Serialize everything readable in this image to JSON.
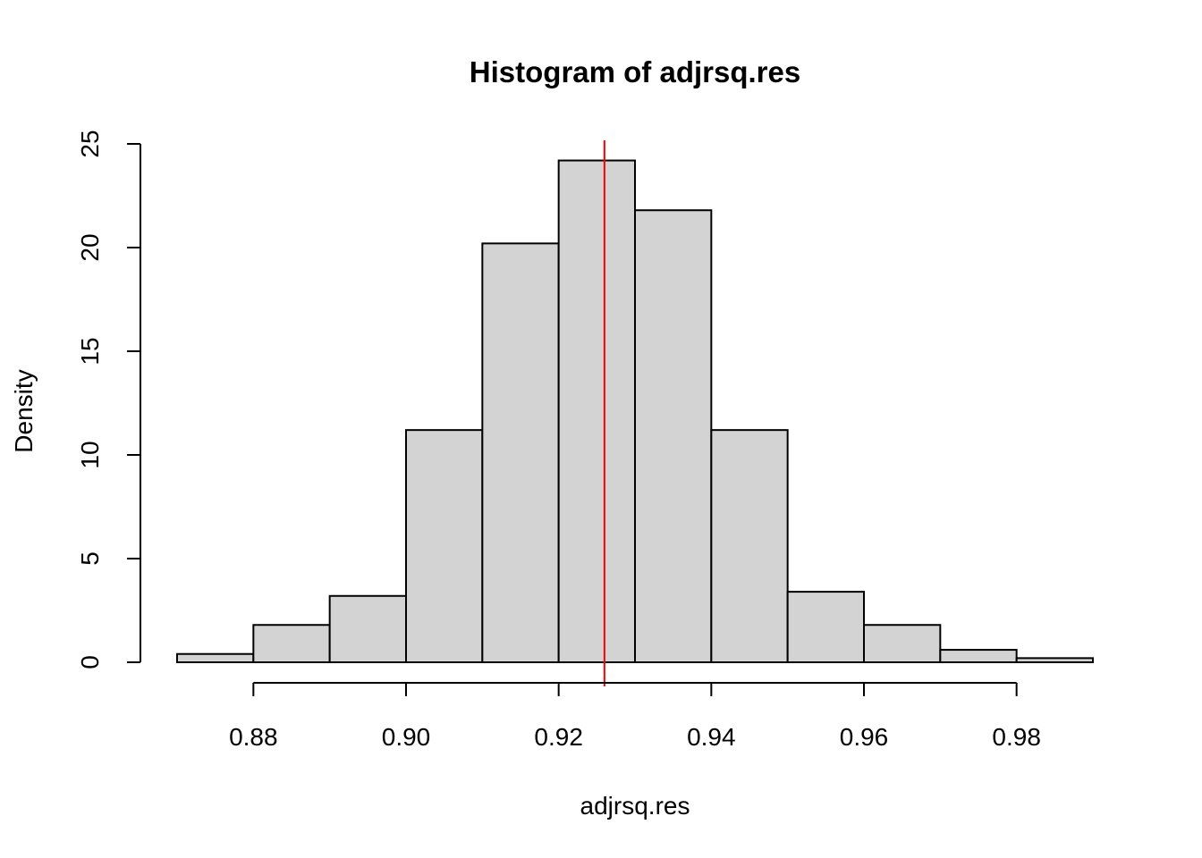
{
  "chart_data": {
    "type": "bar",
    "title": "Histogram of adjrsq.res",
    "xlabel": "adjrsq.res",
    "ylabel": "Density",
    "bin_edges": [
      0.87,
      0.88,
      0.89,
      0.9,
      0.91,
      0.92,
      0.93,
      0.94,
      0.95,
      0.96,
      0.97,
      0.98,
      0.99
    ],
    "values": [
      0.4,
      1.8,
      3.2,
      11.2,
      20.2,
      24.2,
      21.8,
      11.2,
      3.4,
      1.8,
      0.6,
      0.2
    ],
    "xlim": [
      0.87,
      0.99
    ],
    "ylim": [
      0,
      25
    ],
    "x_ticks": [
      0.88,
      0.9,
      0.92,
      0.94,
      0.96,
      0.98
    ],
    "x_tick_labels": [
      "0.88",
      "0.90",
      "0.92",
      "0.94",
      "0.96",
      "0.98"
    ],
    "y_ticks": [
      0,
      5,
      10,
      15,
      20,
      25
    ],
    "y_tick_labels": [
      "0",
      "5",
      "10",
      "15",
      "20",
      "25"
    ],
    "bar_color": "#d3d3d3",
    "reference_line": {
      "x": 0.926,
      "color": "#ff0000"
    },
    "grid": false,
    "legend": "none"
  }
}
